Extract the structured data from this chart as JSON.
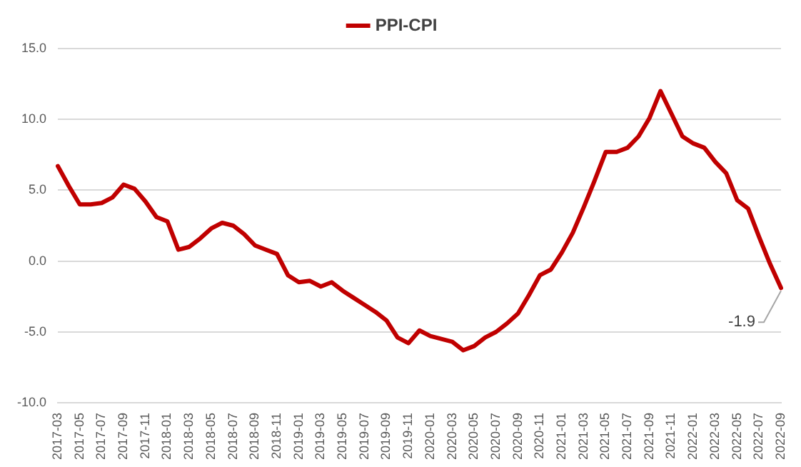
{
  "chart_data": {
    "type": "line",
    "categories": [
      "2017-03",
      null,
      "2017-05",
      null,
      "2017-07",
      null,
      "2017-09",
      null,
      "2017-11",
      null,
      "2018-01",
      null,
      "2018-03",
      null,
      "2018-05",
      null,
      "2018-07",
      null,
      "2018-09",
      null,
      "2018-11",
      null,
      "2019-01",
      null,
      "2019-03",
      null,
      "2019-05",
      null,
      "2019-07",
      null,
      "2019-09",
      null,
      "2019-11",
      null,
      "2020-01",
      null,
      "2020-03",
      null,
      "2020-05",
      null,
      "2020-07",
      null,
      "2020-09",
      null,
      "2020-11",
      null,
      "2021-01",
      null,
      "2021-03",
      null,
      "2021-05",
      null,
      "2021-07",
      null,
      "2021-09",
      null,
      "2021-11",
      null,
      "2022-01",
      null,
      "2022-03",
      null,
      "2022-05",
      null,
      "2022-07",
      null,
      "2022-09"
    ],
    "series": [
      {
        "name": "PPI-CPI",
        "color": "#c00000",
        "values": [
          6.7,
          5.3,
          4.0,
          4.0,
          4.1,
          4.5,
          5.4,
          5.1,
          4.2,
          3.1,
          2.8,
          0.8,
          1.0,
          1.6,
          2.3,
          2.7,
          2.5,
          1.9,
          1.1,
          0.8,
          0.5,
          -1.0,
          -1.5,
          -1.4,
          -1.8,
          -1.5,
          -2.1,
          -2.6,
          -3.1,
          -3.6,
          -4.2,
          -5.4,
          -5.8,
          -4.9,
          -5.3,
          -5.5,
          -5.7,
          -6.3,
          -6.0,
          -5.4,
          -5.0,
          -4.4,
          -3.7,
          -2.4,
          -1.0,
          -0.6,
          0.6,
          2.0,
          3.8,
          5.7,
          7.7,
          7.7,
          8.0,
          8.8,
          10.1,
          12.0,
          10.4,
          8.8,
          8.3,
          8.0,
          7.0,
          6.2,
          4.3,
          3.7,
          1.7,
          -0.2,
          -1.9
        ]
      }
    ],
    "ylim": [
      -10,
      15
    ],
    "yticks": [
      {
        "value": -10,
        "label": "-10.0"
      },
      {
        "value": -5,
        "label": "-5.0"
      },
      {
        "value": 0,
        "label": "0.0"
      },
      {
        "value": 5,
        "label": "5.0"
      },
      {
        "value": 10,
        "label": "10.0"
      },
      {
        "value": 15,
        "label": "15.0"
      }
    ],
    "grid": "y",
    "legend": "top",
    "marker": "none",
    "line_style": "solid",
    "annotations": [
      {
        "text": "-1.9",
        "x": "2022-09",
        "y": -1.9
      }
    ]
  }
}
